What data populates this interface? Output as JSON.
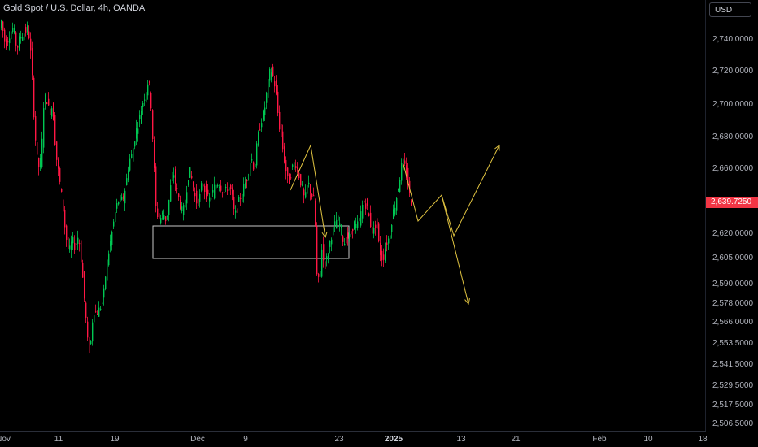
{
  "header": {
    "title": "Gold Spot / U.S. Dollar, 4h, OANDA"
  },
  "currency_button": {
    "label": "USD"
  },
  "last_price": {
    "label": "2,639.7250",
    "value": 2639.725,
    "color": "#f23645"
  },
  "colors": {
    "up": "#089981",
    "down": "#f23645",
    "upCandle": "#00c853",
    "downCandle": "#ff1744",
    "drawing": "#e0c341",
    "box": "#c8c8c8",
    "background": "#000000"
  },
  "chart_data": {
    "type": "candlestick",
    "title": "Gold Spot / U.S. Dollar, 4h, OANDA",
    "y_tick_labels": [
      "2,740.0000",
      "2,720.0000",
      "2,700.0000",
      "2,680.0000",
      "2,660.0000",
      "2,620.0000",
      "2,605.0000",
      "2,590.0000",
      "2,578.0000",
      "2,566.0000",
      "2,553.5000",
      "2,541.5000",
      "2,529.5000",
      "2,517.5000",
      "2,506.5000"
    ],
    "y_tick_values": [
      2740,
      2720,
      2700,
      2680,
      2660,
      2620,
      2605,
      2590,
      2578,
      2566,
      2553.5,
      2541.5,
      2529.5,
      2517.5,
      2506.5
    ],
    "x_tick_labels": [
      "Nov",
      "11",
      "19",
      "Dec",
      "9",
      "23",
      "2025",
      "13",
      "21",
      "Feb",
      "10",
      "18"
    ],
    "ylim": [
      2501,
      2759
    ],
    "price_path": [
      [
        0,
        2745
      ],
      [
        3,
        2752
      ],
      [
        8,
        2736
      ],
      [
        14,
        2745
      ],
      [
        18,
        2748
      ],
      [
        22,
        2734
      ],
      [
        26,
        2742
      ],
      [
        32,
        2745
      ],
      [
        36,
        2748
      ],
      [
        40,
        2726
      ],
      [
        44,
        2685
      ],
      [
        48,
        2660
      ],
      [
        52,
        2666
      ],
      [
        55,
        2700
      ],
      [
        58,
        2706
      ],
      [
        62,
        2695
      ],
      [
        66,
        2700
      ],
      [
        70,
        2670
      ],
      [
        74,
        2655
      ],
      [
        78,
        2640
      ],
      [
        82,
        2620
      ],
      [
        86,
        2608
      ],
      [
        90,
        2616
      ],
      [
        94,
        2612
      ],
      [
        98,
        2620
      ],
      [
        102,
        2600
      ],
      [
        106,
        2575
      ],
      [
        110,
        2548
      ],
      [
        113,
        2555
      ],
      [
        116,
        2574
      ],
      [
        120,
        2572
      ],
      [
        124,
        2575
      ],
      [
        128,
        2580
      ],
      [
        132,
        2600
      ],
      [
        136,
        2612
      ],
      [
        140,
        2624
      ],
      [
        144,
        2636
      ],
      [
        148,
        2642
      ],
      [
        152,
        2640
      ],
      [
        156,
        2650
      ],
      [
        160,
        2665
      ],
      [
        164,
        2670
      ],
      [
        168,
        2683
      ],
      [
        172,
        2690
      ],
      [
        176,
        2700
      ],
      [
        180,
        2707
      ],
      [
        184,
        2716
      ],
      [
        187,
        2700
      ],
      [
        190,
        2670
      ],
      [
        193,
        2636
      ],
      [
        196,
        2630
      ],
      [
        199,
        2630
      ],
      [
        202,
        2633
      ],
      [
        206,
        2628
      ],
      [
        210,
        2645
      ],
      [
        214,
        2660
      ],
      [
        218,
        2648
      ],
      [
        222,
        2640
      ],
      [
        226,
        2632
      ],
      [
        230,
        2645
      ],
      [
        234,
        2660
      ],
      [
        238,
        2652
      ],
      [
        242,
        2640
      ],
      [
        246,
        2640
      ],
      [
        250,
        2652
      ],
      [
        254,
        2646
      ],
      [
        258,
        2640
      ],
      [
        262,
        2644
      ],
      [
        266,
        2650
      ],
      [
        270,
        2652
      ],
      [
        274,
        2648
      ],
      [
        278,
        2645
      ],
      [
        282,
        2650
      ],
      [
        286,
        2646
      ],
      [
        290,
        2630
      ],
      [
        294,
        2638
      ],
      [
        298,
        2645
      ],
      [
        302,
        2650
      ],
      [
        306,
        2656
      ],
      [
        310,
        2668
      ],
      [
        314,
        2660
      ],
      [
        318,
        2678
      ],
      [
        322,
        2690
      ],
      [
        326,
        2695
      ],
      [
        330,
        2710
      ],
      [
        334,
        2722
      ],
      [
        337,
        2717
      ],
      [
        340,
        2710
      ],
      [
        344,
        2690
      ],
      [
        348,
        2677
      ],
      [
        352,
        2662
      ],
      [
        356,
        2650
      ],
      [
        360,
        2660
      ],
      [
        364,
        2665
      ],
      [
        368,
        2658
      ],
      [
        372,
        2650
      ],
      [
        376,
        2640
      ],
      [
        380,
        2652
      ],
      [
        384,
        2645
      ],
      [
        388,
        2640
      ],
      [
        391,
        2595
      ],
      [
        394,
        2590
      ],
      [
        397,
        2612
      ],
      [
        400,
        2600
      ],
      [
        404,
        2606
      ],
      [
        408,
        2618
      ],
      [
        412,
        2624
      ],
      [
        416,
        2630
      ],
      [
        420,
        2625
      ],
      [
        424,
        2614
      ],
      [
        428,
        2618
      ],
      [
        432,
        2618
      ],
      [
        436,
        2627
      ],
      [
        440,
        2624
      ],
      [
        444,
        2630
      ],
      [
        448,
        2640
      ],
      [
        452,
        2638
      ],
      [
        456,
        2628
      ],
      [
        460,
        2620
      ],
      [
        464,
        2628
      ],
      [
        468,
        2610
      ],
      [
        472,
        2604
      ],
      [
        476,
        2614
      ],
      [
        480,
        2618
      ],
      [
        484,
        2632
      ],
      [
        488,
        2640
      ],
      [
        492,
        2652
      ],
      [
        496,
        2665
      ],
      [
        500,
        2660
      ],
      [
        504,
        2648
      ],
      [
        506,
        2640
      ]
    ],
    "projection_path": [
      [
        496,
        2663
      ],
      [
        514,
        2628
      ],
      [
        543,
        2644
      ],
      [
        558,
        2619
      ],
      [
        614,
        2675
      ]
    ],
    "projection_path_2": [
      [
        357,
        2647
      ],
      [
        382,
        2675
      ],
      [
        400,
        2618
      ]
    ],
    "projection_path_3": [
      [
        543,
        2644
      ],
      [
        576,
        2578
      ]
    ],
    "zone_box": {
      "price_top": 2625,
      "price_bottom": 2605,
      "x_start": 188,
      "x_end": 429
    }
  }
}
